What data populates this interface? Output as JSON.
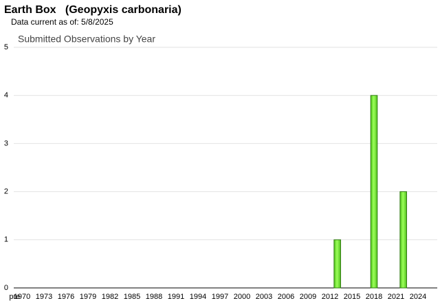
{
  "title": "Earth Box   (Geopyxis carbonaria)",
  "subtitle": "Data current as of: 5/8/2025",
  "chart_data": {
    "type": "bar",
    "title": "Submitted Observations by Year",
    "categories": [
      "pre",
      "1970",
      null,
      null,
      "1973",
      null,
      null,
      "1976",
      null,
      null,
      "1979",
      null,
      null,
      "1982",
      null,
      null,
      "1985",
      null,
      null,
      "1988",
      null,
      null,
      "1991",
      null,
      null,
      "1994",
      null,
      null,
      "1997",
      null,
      null,
      "2000",
      null,
      null,
      "2003",
      null,
      null,
      "2006",
      null,
      null,
      "2009",
      null,
      null,
      "2012",
      null,
      null,
      "2015",
      null,
      null,
      "2018",
      null,
      null,
      "2021",
      null,
      null,
      "2024",
      null
    ],
    "values": [
      0,
      0,
      0,
      0,
      0,
      0,
      0,
      0,
      0,
      0,
      0,
      0,
      0,
      0,
      0,
      0,
      0,
      0,
      0,
      0,
      0,
      0,
      0,
      0,
      0,
      0,
      0,
      0,
      0,
      0,
      0,
      0,
      0,
      0,
      0,
      0,
      0,
      0,
      0,
      0,
      0,
      0,
      0,
      0,
      1,
      0,
      0,
      0,
      0,
      4,
      0,
      0,
      0,
      2,
      0,
      0,
      0
    ],
    "color": "#7ee83a",
    "ylim": [
      0,
      5
    ],
    "yticks": [
      0,
      1,
      2,
      3,
      4,
      5
    ],
    "grid": true
  }
}
